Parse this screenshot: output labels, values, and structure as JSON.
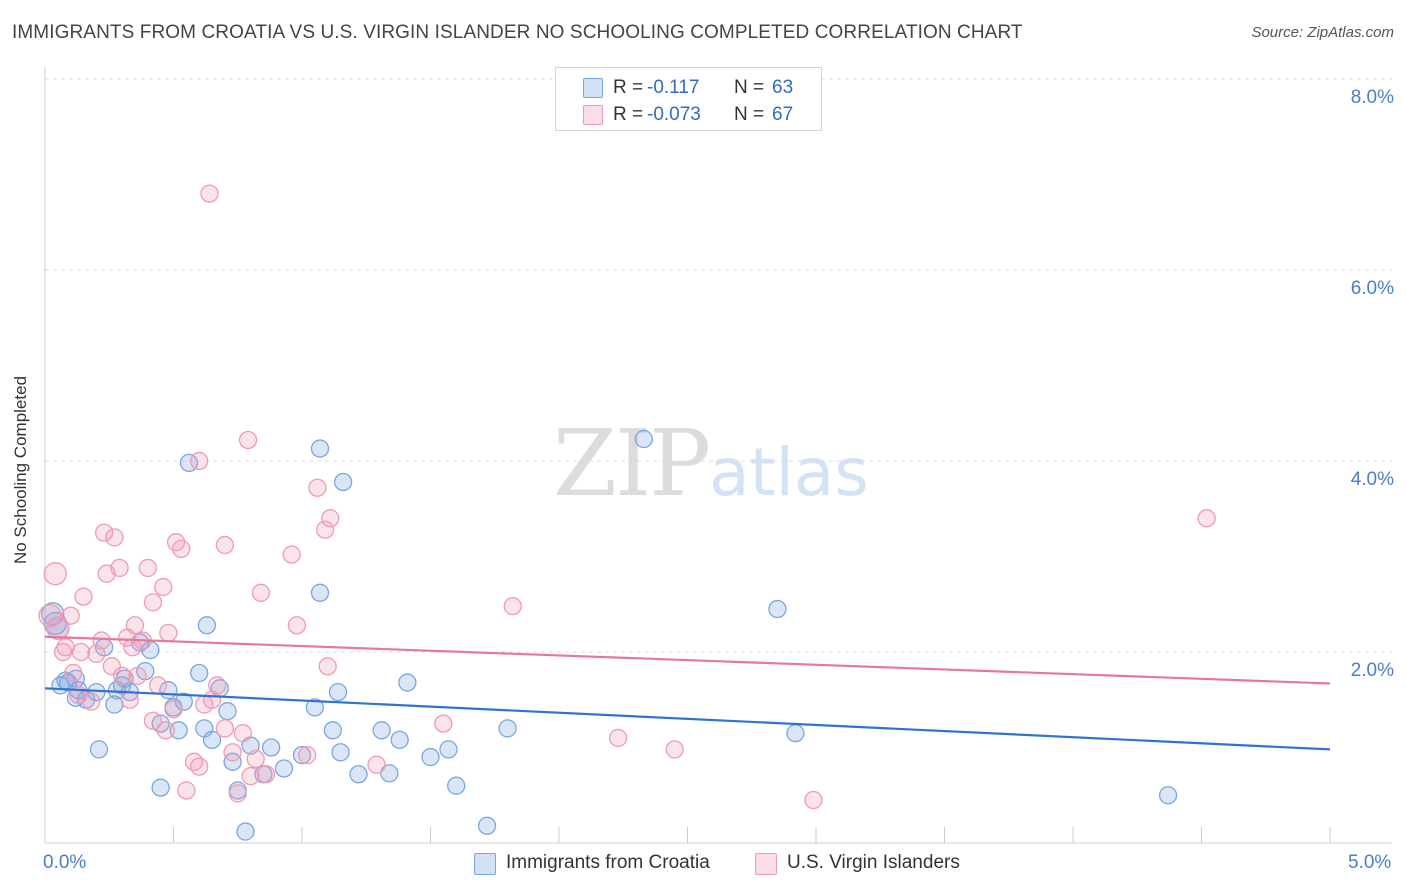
{
  "title": "IMMIGRANTS FROM CROATIA VS U.S. VIRGIN ISLANDER NO SCHOOLING COMPLETED CORRELATION CHART",
  "source": "Source: ZipAtlas.com",
  "watermark": {
    "zip": "ZIP",
    "atlas": "atlas"
  },
  "stats": [
    {
      "r_label": "R =",
      "r_value": "-0.117",
      "n_label": "N =",
      "n_value": "63",
      "color": "#a9c6ee"
    },
    {
      "r_label": "R =",
      "r_value": "-0.073",
      "n_label": "N =",
      "n_value": "67",
      "color": "#f5b4c8"
    }
  ],
  "chart_data": {
    "type": "scatter",
    "title": "IMMIGRANTS FROM CROATIA VS U.S. VIRGIN ISLANDER NO SCHOOLING COMPLETED CORRELATION CHART",
    "xlabel": "",
    "ylabel": "No Schooling Completed",
    "xlim": [
      0,
      5
    ],
    "ylim": [
      0,
      8.5
    ],
    "x_ticks": [
      "0.0%",
      "5.0%"
    ],
    "y_ticks": [
      "2.0%",
      "4.0%",
      "6.0%",
      "8.0%"
    ],
    "grid": "horizontal dashed",
    "legend_position": "bottom-center",
    "series": [
      {
        "name": "Immigrants from Croatia",
        "color": "#7aa6e0",
        "line_color": "#2f73d1",
        "trend": {
          "start": [
            0,
            1.62
          ],
          "end": [
            5,
            0.98
          ]
        },
        "points": [
          [
            0.03,
            2.4
          ],
          [
            0.04,
            2.3
          ],
          [
            0.06,
            1.65
          ],
          [
            0.08,
            1.7
          ],
          [
            0.12,
            1.72
          ],
          [
            0.12,
            1.52
          ],
          [
            0.13,
            1.6
          ],
          [
            0.21,
            0.98
          ],
          [
            0.23,
            2.05
          ],
          [
            0.27,
            1.45
          ],
          [
            0.3,
            1.65
          ],
          [
            0.33,
            1.58
          ],
          [
            0.37,
            2.1
          ],
          [
            0.39,
            1.8
          ],
          [
            0.41,
            2.02
          ],
          [
            0.45,
            0.58
          ],
          [
            0.48,
            1.6
          ],
          [
            0.5,
            1.42
          ],
          [
            0.54,
            1.48
          ],
          [
            0.56,
            3.98
          ],
          [
            0.6,
            1.78
          ],
          [
            0.63,
            2.28
          ],
          [
            0.65,
            1.08
          ],
          [
            0.68,
            1.62
          ],
          [
            0.71,
            1.38
          ],
          [
            0.73,
            0.85
          ],
          [
            0.75,
            0.55
          ],
          [
            0.78,
            0.12
          ],
          [
            0.8,
            1.02
          ],
          [
            0.85,
            0.72
          ],
          [
            0.88,
            1.0
          ],
          [
            0.93,
            0.78
          ],
          [
            1.0,
            0.92
          ],
          [
            1.05,
            1.42
          ],
          [
            1.07,
            4.13
          ],
          [
            1.07,
            2.62
          ],
          [
            1.12,
            1.18
          ],
          [
            1.14,
            1.58
          ],
          [
            1.15,
            0.95
          ],
          [
            1.16,
            3.78
          ],
          [
            1.22,
            0.72
          ],
          [
            1.31,
            1.18
          ],
          [
            1.34,
            0.73
          ],
          [
            1.38,
            1.08
          ],
          [
            1.41,
            1.68
          ],
          [
            1.5,
            0.9
          ],
          [
            1.57,
            0.98
          ],
          [
            1.6,
            0.6
          ],
          [
            1.72,
            0.18
          ],
          [
            1.8,
            1.2
          ],
          [
            2.33,
            4.23
          ],
          [
            2.85,
            2.45
          ],
          [
            2.92,
            1.15
          ],
          [
            4.37,
            0.5
          ],
          [
            0.2,
            1.58
          ],
          [
            0.31,
            1.72
          ],
          [
            0.45,
            1.25
          ],
          [
            0.52,
            1.18
          ],
          [
            0.62,
            1.2
          ],
          [
            0.05,
            2.25
          ],
          [
            0.09,
            1.68
          ],
          [
            0.16,
            1.5
          ],
          [
            0.28,
            1.6
          ]
        ]
      },
      {
        "name": "U.S. Virgin Islanders",
        "color": "#f09ab4",
        "line_color": "#e8779e",
        "trend": {
          "start": [
            0,
            2.16
          ],
          "end": [
            5,
            1.67
          ]
        },
        "points": [
          [
            0.02,
            2.38
          ],
          [
            0.04,
            2.82
          ],
          [
            0.05,
            2.25
          ],
          [
            0.07,
            2.0
          ],
          [
            0.08,
            2.05
          ],
          [
            0.1,
            2.38
          ],
          [
            0.11,
            1.78
          ],
          [
            0.13,
            1.55
          ],
          [
            0.15,
            2.58
          ],
          [
            0.18,
            1.48
          ],
          [
            0.2,
            1.98
          ],
          [
            0.22,
            2.12
          ],
          [
            0.23,
            3.25
          ],
          [
            0.24,
            2.82
          ],
          [
            0.26,
            1.85
          ],
          [
            0.27,
            3.2
          ],
          [
            0.29,
            2.88
          ],
          [
            0.3,
            1.75
          ],
          [
            0.32,
            2.15
          ],
          [
            0.33,
            1.5
          ],
          [
            0.34,
            2.05
          ],
          [
            0.35,
            2.28
          ],
          [
            0.36,
            1.75
          ],
          [
            0.38,
            2.12
          ],
          [
            0.4,
            2.88
          ],
          [
            0.42,
            2.52
          ],
          [
            0.42,
            1.28
          ],
          [
            0.44,
            1.65
          ],
          [
            0.46,
            2.68
          ],
          [
            0.47,
            1.18
          ],
          [
            0.48,
            2.2
          ],
          [
            0.5,
            1.4
          ],
          [
            0.51,
            3.15
          ],
          [
            0.53,
            3.08
          ],
          [
            0.55,
            0.55
          ],
          [
            0.58,
            0.85
          ],
          [
            0.6,
            4.0
          ],
          [
            0.6,
            0.8
          ],
          [
            0.62,
            1.45
          ],
          [
            0.64,
            6.8
          ],
          [
            0.65,
            1.5
          ],
          [
            0.67,
            1.65
          ],
          [
            0.7,
            3.12
          ],
          [
            0.7,
            1.2
          ],
          [
            0.73,
            0.95
          ],
          [
            0.75,
            0.52
          ],
          [
            0.77,
            1.15
          ],
          [
            0.79,
            4.22
          ],
          [
            0.8,
            0.7
          ],
          [
            0.82,
            0.88
          ],
          [
            0.84,
            2.62
          ],
          [
            0.86,
            0.72
          ],
          [
            0.96,
            3.02
          ],
          [
            0.98,
            2.28
          ],
          [
            1.02,
            0.92
          ],
          [
            1.06,
            3.72
          ],
          [
            1.09,
            3.28
          ],
          [
            1.1,
            1.85
          ],
          [
            1.11,
            3.4
          ],
          [
            1.29,
            0.82
          ],
          [
            1.55,
            1.25
          ],
          [
            1.82,
            2.48
          ],
          [
            2.23,
            1.1
          ],
          [
            2.45,
            0.98
          ],
          [
            2.99,
            0.45
          ],
          [
            4.52,
            3.4
          ],
          [
            0.14,
            2.0
          ]
        ]
      }
    ]
  }
}
